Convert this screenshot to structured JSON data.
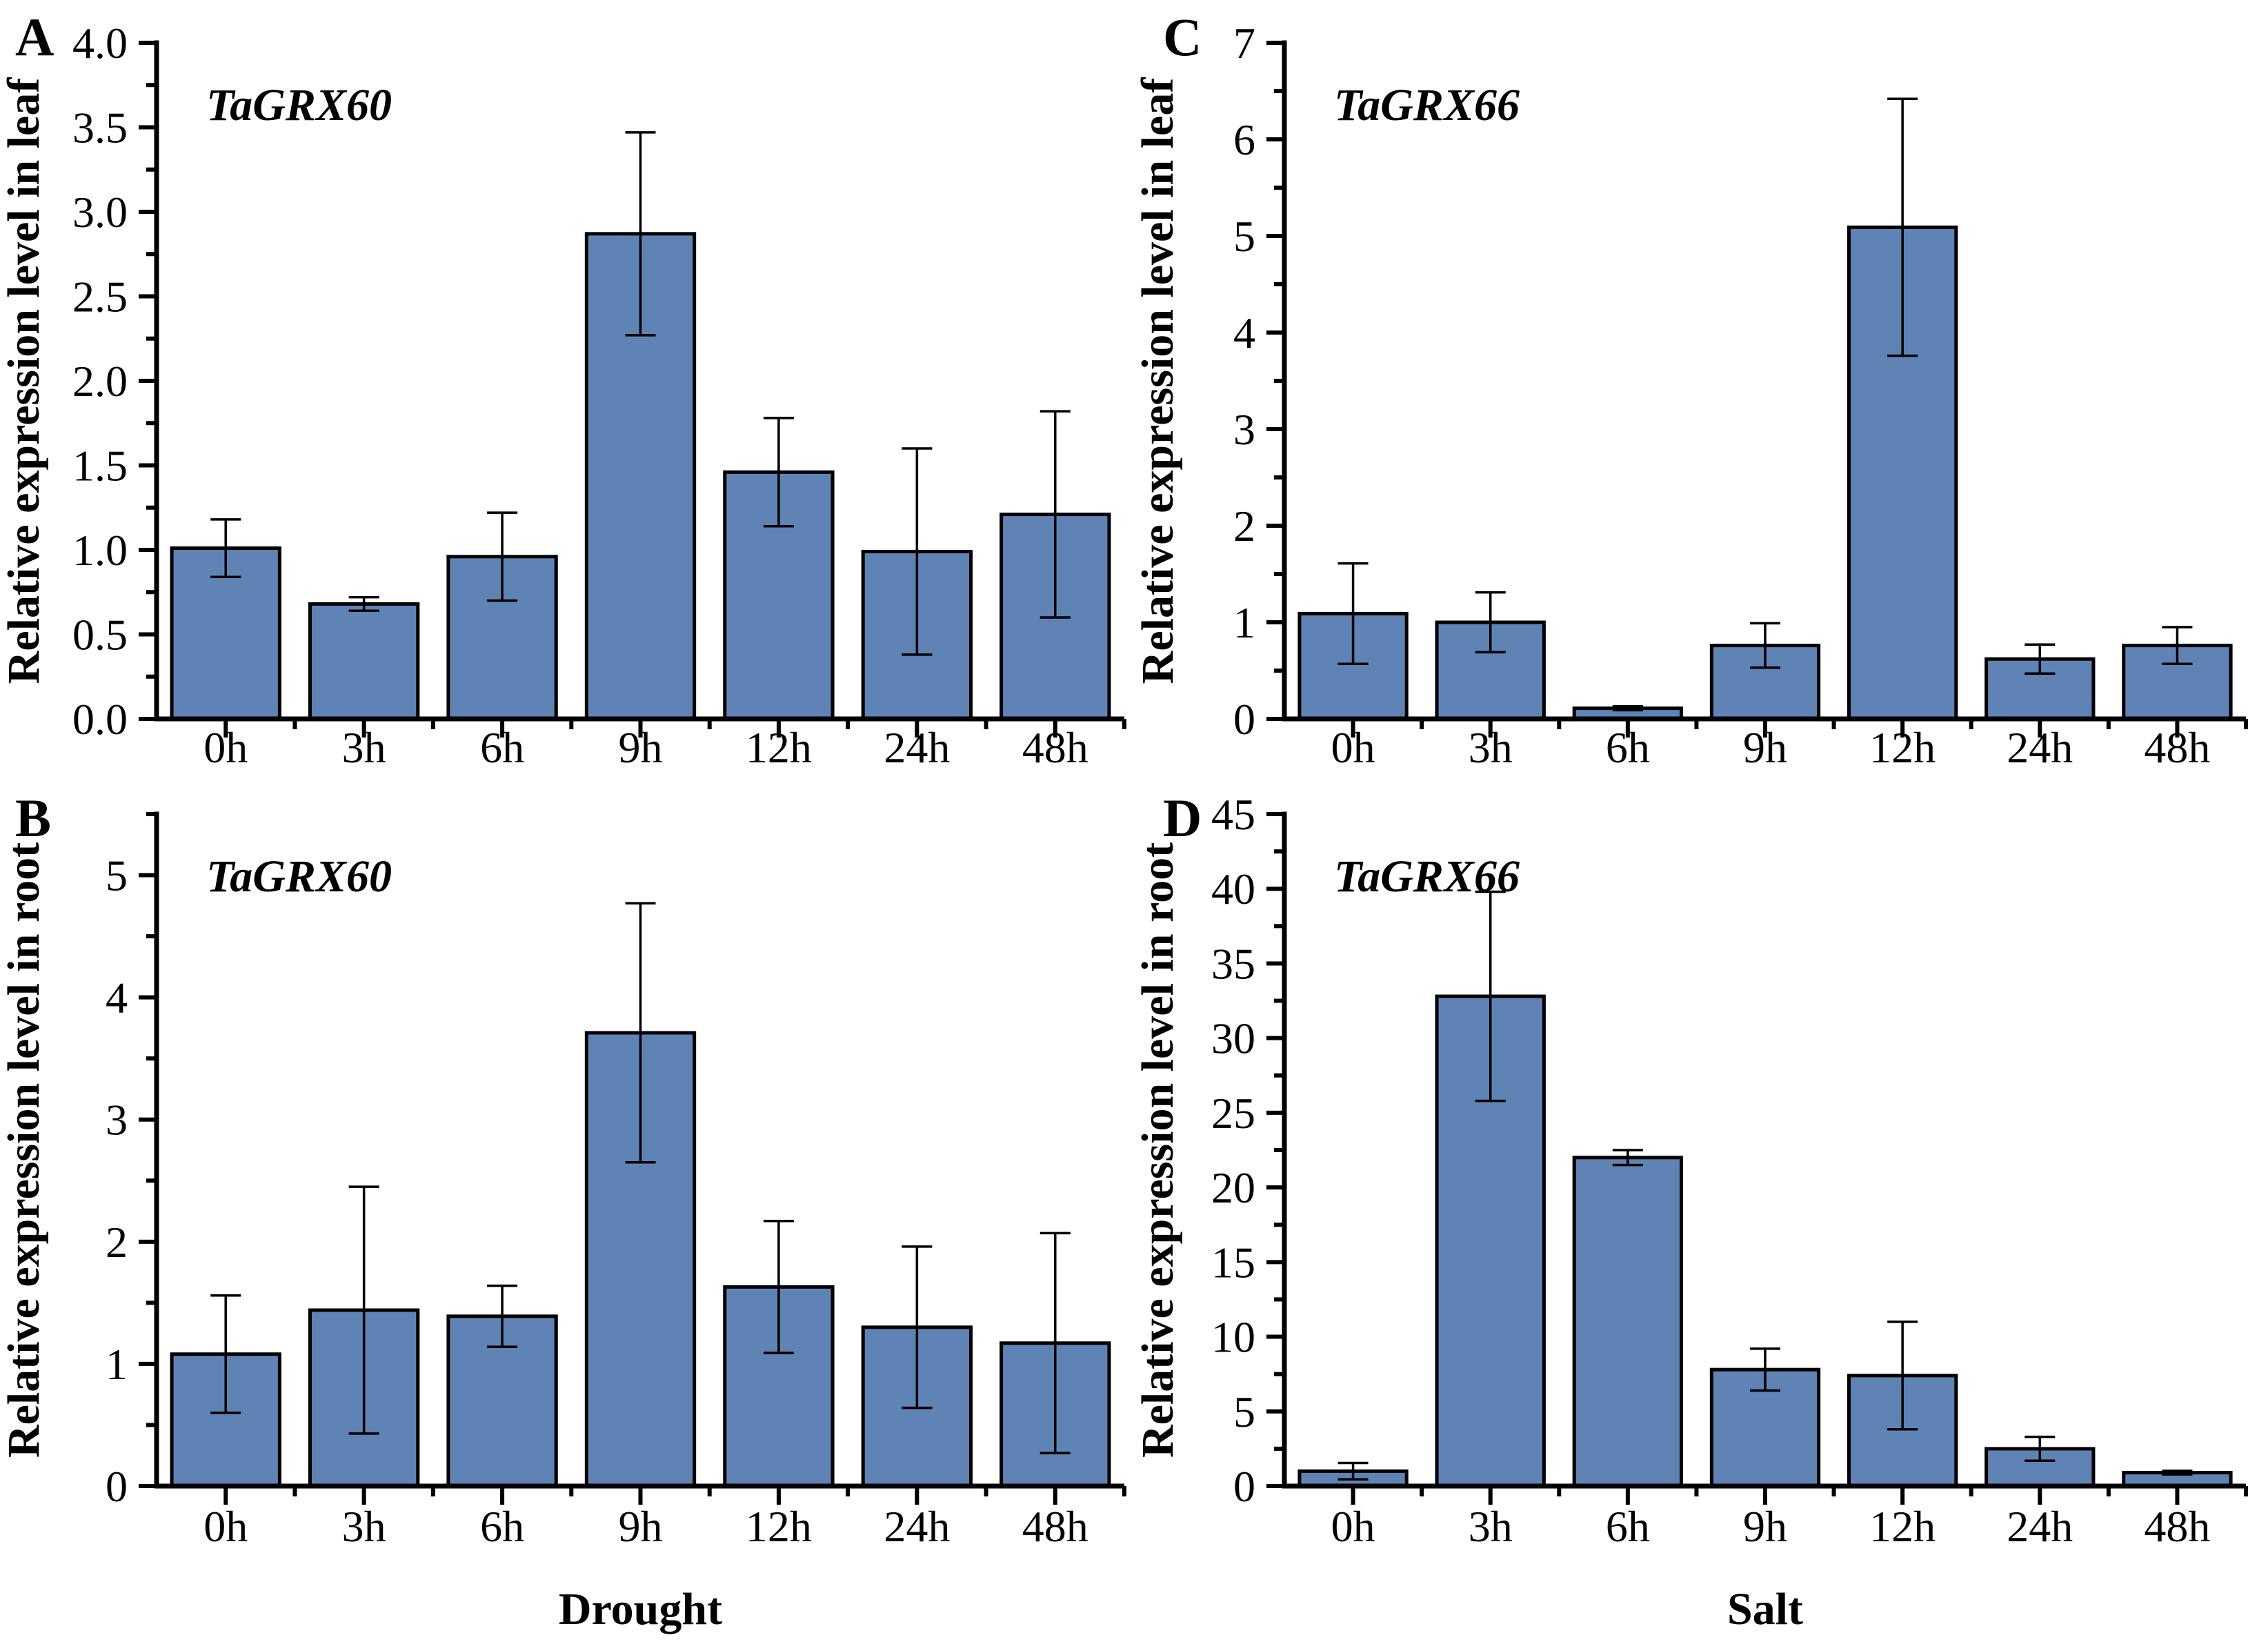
{
  "figure": {
    "background": "#ffffff",
    "bar_fill": "#5E83B4",
    "bar_stroke": "#000000",
    "axis_color": "#000000",
    "text_color": "#000000"
  },
  "categories": [
    "0h",
    "3h",
    "6h",
    "9h",
    "12h",
    "24h",
    "48h"
  ],
  "chart_data": [
    {
      "panel": "A",
      "type": "bar",
      "title": "TaGRX60",
      "ylabel": "Relative expression level in leaf",
      "xlabel": "",
      "categories": [
        "0h",
        "3h",
        "6h",
        "9h",
        "12h",
        "24h",
        "48h"
      ],
      "values": [
        1.01,
        0.68,
        0.96,
        2.87,
        1.46,
        0.99,
        1.21
      ],
      "errors": [
        0.17,
        0.04,
        0.26,
        0.6,
        0.32,
        0.61,
        0.61
      ],
      "ylim": [
        0,
        4.0
      ],
      "ytick_step": 0.5,
      "ytick_labels": [
        "0.0",
        "0.5",
        "1.0",
        "1.5",
        "2.0",
        "2.5",
        "3.0",
        "3.5",
        "4.0"
      ],
      "grid": false,
      "legend": false
    },
    {
      "panel": "C",
      "type": "bar",
      "title": "TaGRX66",
      "ylabel": "Relative expression level in leaf",
      "xlabel": "",
      "categories": [
        "0h",
        "3h",
        "6h",
        "9h",
        "12h",
        "24h",
        "48h"
      ],
      "values": [
        1.09,
        1.0,
        0.11,
        0.76,
        5.09,
        0.62,
        0.76
      ],
      "errors": [
        0.52,
        0.31,
        0.02,
        0.23,
        1.33,
        0.15,
        0.19
      ],
      "ylim": [
        0,
        7
      ],
      "ytick_step": 1,
      "ytick_labels": [
        "0",
        "1",
        "2",
        "3",
        "4",
        "5",
        "6",
        "7"
      ],
      "grid": false,
      "legend": false
    },
    {
      "panel": "B",
      "type": "bar",
      "title": "TaGRX60",
      "ylabel": "Relative expression level in root",
      "xlabel": "Drought",
      "categories": [
        "0h",
        "3h",
        "6h",
        "9h",
        "12h",
        "24h",
        "48h"
      ],
      "values": [
        1.08,
        1.44,
        1.39,
        3.71,
        1.63,
        1.3,
        1.17
      ],
      "errors": [
        0.48,
        1.01,
        0.25,
        1.06,
        0.54,
        0.66,
        0.9
      ],
      "ylim": [
        0,
        5.5
      ],
      "ytick_step": 1,
      "ytick_labels": [
        "0",
        "1",
        "2",
        "3",
        "4",
        "5"
      ],
      "grid": false,
      "legend": false
    },
    {
      "panel": "D",
      "type": "bar",
      "title": "TaGRX66",
      "ylabel": "Relative expression level in root",
      "xlabel": "Salt",
      "categories": [
        "0h",
        "3h",
        "6h",
        "9h",
        "12h",
        "24h",
        "48h"
      ],
      "values": [
        1.0,
        32.8,
        22.0,
        7.8,
        7.4,
        2.5,
        0.9
      ],
      "errors": [
        0.55,
        7.0,
        0.5,
        1.4,
        3.6,
        0.8,
        0.12
      ],
      "ylim": [
        0,
        45
      ],
      "ytick_step": 5,
      "ytick_labels": [
        "0",
        "5",
        "10",
        "15",
        "20",
        "25",
        "30",
        "35",
        "40",
        "45"
      ],
      "grid": false,
      "legend": false
    }
  ]
}
